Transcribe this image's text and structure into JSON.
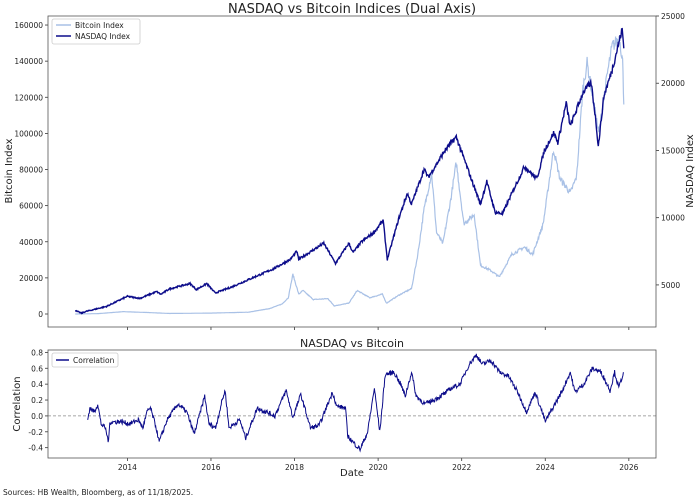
{
  "chart_data": [
    {
      "type": "line",
      "title": "NASDAQ vs Bitcoin Indices (Dual Axis)",
      "xlabel": "",
      "ylabel": "Bitcoin Index",
      "y2label": "NASDAQ Index",
      "xlim": [
        2012.1,
        2026.65
      ],
      "ylim": [
        -7200,
        165000
      ],
      "y2lim": [
        1870,
        25000
      ],
      "yticks": [
        0,
        20000,
        40000,
        60000,
        80000,
        100000,
        120000,
        140000,
        160000
      ],
      "y2ticks": [
        5000,
        10000,
        15000,
        20000,
        25000
      ],
      "legend": "top-left",
      "grid": false,
      "series": [
        {
          "name": "Bitcoin Index",
          "axis": "left",
          "color": "#a9c1e6",
          "points": [
            [
              2012.75,
              0
            ],
            [
              2013.3,
              200
            ],
            [
              2013.9,
              1300
            ],
            [
              2014.5,
              800
            ],
            [
              2015.0,
              300
            ],
            [
              2016.0,
              500
            ],
            [
              2016.9,
              1000
            ],
            [
              2017.4,
              3000
            ],
            [
              2017.7,
              5500
            ],
            [
              2017.85,
              9000
            ],
            [
              2017.96,
              22000
            ],
            [
              2018.1,
              11000
            ],
            [
              2018.2,
              13000
            ],
            [
              2018.45,
              8000
            ],
            [
              2018.8,
              8500
            ],
            [
              2018.95,
              4500
            ],
            [
              2019.3,
              6000
            ],
            [
              2019.5,
              13000
            ],
            [
              2019.8,
              9000
            ],
            [
              2020.1,
              11000
            ],
            [
              2020.2,
              6000
            ],
            [
              2020.5,
              10500
            ],
            [
              2020.8,
              14000
            ],
            [
              2020.95,
              33000
            ],
            [
              2021.1,
              58000
            ],
            [
              2021.28,
              78000
            ],
            [
              2021.4,
              45000
            ],
            [
              2021.55,
              39000
            ],
            [
              2021.75,
              65000
            ],
            [
              2021.87,
              84000
            ],
            [
              2022.05,
              50000
            ],
            [
              2022.3,
              55000
            ],
            [
              2022.45,
              27000
            ],
            [
              2022.7,
              24000
            ],
            [
              2022.9,
              20500
            ],
            [
              2023.2,
              33000
            ],
            [
              2023.5,
              37000
            ],
            [
              2023.7,
              33000
            ],
            [
              2023.95,
              50000
            ],
            [
              2024.2,
              91000
            ],
            [
              2024.35,
              75000
            ],
            [
              2024.6,
              67000
            ],
            [
              2024.75,
              76000
            ],
            [
              2024.9,
              125000
            ],
            [
              2025.0,
              139000
            ],
            [
              2025.28,
              100000
            ],
            [
              2025.5,
              135000
            ],
            [
              2025.6,
              148000
            ],
            [
              2025.78,
              153000
            ],
            [
              2025.85,
              140000
            ],
            [
              2025.88,
              116000
            ]
          ]
        },
        {
          "name": "NASDAQ Index",
          "axis": "right",
          "color": "#0c0c8a",
          "points": [
            [
              2012.75,
              3100
            ],
            [
              2012.9,
              2900
            ],
            [
              2013.0,
              3020
            ],
            [
              2013.5,
              3400
            ],
            [
              2014.0,
              4150
            ],
            [
              2014.3,
              4000
            ],
            [
              2014.7,
              4500
            ],
            [
              2014.8,
              4300
            ],
            [
              2015.0,
              4700
            ],
            [
              2015.5,
              5100
            ],
            [
              2015.65,
              4650
            ],
            [
              2015.9,
              5100
            ],
            [
              2016.1,
              4400
            ],
            [
              2016.5,
              4850
            ],
            [
              2016.9,
              5400
            ],
            [
              2017.5,
              6200
            ],
            [
              2017.9,
              6900
            ],
            [
              2018.05,
              7500
            ],
            [
              2018.1,
              6900
            ],
            [
              2018.7,
              8100
            ],
            [
              2018.98,
              6600
            ],
            [
              2019.3,
              8100
            ],
            [
              2019.4,
              7400
            ],
            [
              2019.6,
              8200
            ],
            [
              2019.9,
              8900
            ],
            [
              2020.12,
              9800
            ],
            [
              2020.22,
              6900
            ],
            [
              2020.5,
              10000
            ],
            [
              2020.7,
              11800
            ],
            [
              2020.8,
              11000
            ],
            [
              2021.1,
              13600
            ],
            [
              2021.2,
              13000
            ],
            [
              2021.4,
              14000
            ],
            [
              2021.6,
              15000
            ],
            [
              2021.87,
              16000
            ],
            [
              2022.1,
              14000
            ],
            [
              2022.45,
              11000
            ],
            [
              2022.6,
              12700
            ],
            [
              2022.8,
              10400
            ],
            [
              2022.98,
              10300
            ],
            [
              2023.2,
              11800
            ],
            [
              2023.5,
              13800
            ],
            [
              2023.8,
              12900
            ],
            [
              2023.98,
              15000
            ],
            [
              2024.2,
              16300
            ],
            [
              2024.3,
              15600
            ],
            [
              2024.5,
              18500
            ],
            [
              2024.6,
              16800
            ],
            [
              2024.9,
              19300
            ],
            [
              2025.0,
              19700
            ],
            [
              2025.1,
              20000
            ],
            [
              2025.2,
              17500
            ],
            [
              2025.27,
              15300
            ],
            [
              2025.4,
              19000
            ],
            [
              2025.6,
              21000
            ],
            [
              2025.8,
              23500
            ],
            [
              2025.84,
              24000
            ],
            [
              2025.88,
              22600
            ]
          ]
        }
      ]
    },
    {
      "type": "line",
      "title": "NASDAQ vs Bitcoin",
      "xlabel": "Date",
      "ylabel": "Correlation",
      "xlim": [
        2012.1,
        2026.65
      ],
      "ylim": [
        -0.53,
        0.83
      ],
      "xticks": [
        2014,
        2016,
        2018,
        2020,
        2022,
        2024,
        2026
      ],
      "yticks": [
        -0.4,
        -0.2,
        0.0,
        0.2,
        0.4,
        0.6,
        0.8
      ],
      "reference_line": 0.0,
      "legend": "top-left",
      "grid": false,
      "series": [
        {
          "name": "Correlation",
          "color": "#0c0c8a",
          "points": [
            [
              2013.05,
              -0.05
            ],
            [
              2013.1,
              0.1
            ],
            [
              2013.21,
              0.05
            ],
            [
              2013.29,
              0.15
            ],
            [
              2013.37,
              -0.1
            ],
            [
              2013.47,
              -0.15
            ],
            [
              2013.55,
              -0.33
            ],
            [
              2013.58,
              -0.08
            ],
            [
              2013.84,
              -0.07
            ],
            [
              2014.05,
              -0.1
            ],
            [
              2014.26,
              -0.05
            ],
            [
              2014.37,
              -0.15
            ],
            [
              2014.47,
              0.05
            ],
            [
              2014.55,
              0.1
            ],
            [
              2014.69,
              -0.15
            ],
            [
              2014.76,
              -0.33
            ],
            [
              2014.95,
              -0.05
            ],
            [
              2015.21,
              0.15
            ],
            [
              2015.42,
              0.05
            ],
            [
              2015.6,
              -0.23
            ],
            [
              2015.85,
              0.25
            ],
            [
              2015.95,
              -0.1
            ],
            [
              2016.11,
              -0.15
            ],
            [
              2016.27,
              0.2
            ],
            [
              2016.34,
              0.32
            ],
            [
              2016.43,
              -0.15
            ],
            [
              2016.69,
              -0.05
            ],
            [
              2016.83,
              -0.28
            ],
            [
              2017.11,
              0.1
            ],
            [
              2017.32,
              0.05
            ],
            [
              2017.53,
              0.0
            ],
            [
              2017.8,
              0.32
            ],
            [
              2017.96,
              -0.02
            ],
            [
              2018.15,
              0.27
            ],
            [
              2018.38,
              -0.15
            ],
            [
              2018.59,
              -0.12
            ],
            [
              2018.91,
              0.3
            ],
            [
              2019.01,
              0.12
            ],
            [
              2019.22,
              0.1
            ],
            [
              2019.27,
              -0.25
            ],
            [
              2019.43,
              -0.35
            ],
            [
              2019.57,
              -0.42
            ],
            [
              2019.75,
              -0.2
            ],
            [
              2019.91,
              0.35
            ],
            [
              2020.04,
              -0.2
            ],
            [
              2020.17,
              0.52
            ],
            [
              2020.38,
              0.55
            ],
            [
              2020.54,
              0.4
            ],
            [
              2020.65,
              0.25
            ],
            [
              2020.8,
              0.55
            ],
            [
              2020.91,
              0.25
            ],
            [
              2021.12,
              0.15
            ],
            [
              2021.33,
              0.2
            ],
            [
              2021.59,
              0.28
            ],
            [
              2021.75,
              0.35
            ],
            [
              2021.96,
              0.4
            ],
            [
              2022.18,
              0.65
            ],
            [
              2022.35,
              0.77
            ],
            [
              2022.49,
              0.65
            ],
            [
              2022.7,
              0.7
            ],
            [
              2022.91,
              0.55
            ],
            [
              2023.12,
              0.5
            ],
            [
              2023.34,
              0.3
            ],
            [
              2023.55,
              0.05
            ],
            [
              2023.76,
              0.3
            ],
            [
              2024.0,
              -0.07
            ],
            [
              2024.18,
              0.1
            ],
            [
              2024.39,
              0.3
            ],
            [
              2024.6,
              0.55
            ],
            [
              2024.71,
              0.3
            ],
            [
              2024.92,
              0.4
            ],
            [
              2025.13,
              0.6
            ],
            [
              2025.34,
              0.55
            ],
            [
              2025.55,
              0.32
            ],
            [
              2025.66,
              0.55
            ],
            [
              2025.76,
              0.35
            ],
            [
              2025.87,
              0.55
            ]
          ]
        }
      ]
    }
  ],
  "footer": {
    "source": "Sources: HB Wealth, Bloomberg, as of 11/18/2025."
  }
}
